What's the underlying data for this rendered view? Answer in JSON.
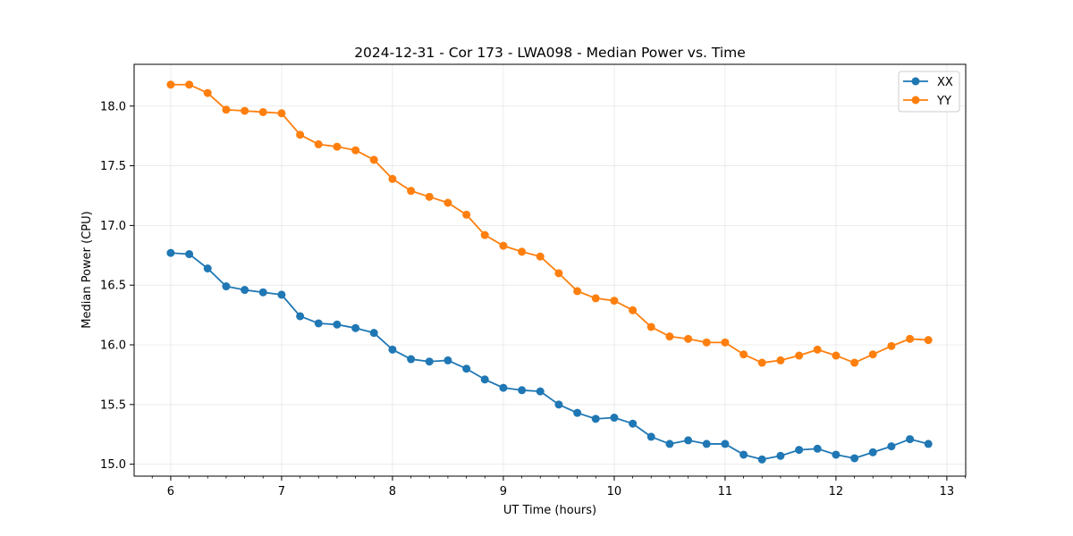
{
  "chart_data": {
    "type": "line",
    "title": "2024-12-31 - Cor 173 - LWA098 - Median Power vs. Time",
    "xlabel": "UT Time (hours)",
    "ylabel": "Median Power (CPU)",
    "xlim": [
      5.67,
      13.17
    ],
    "ylim": [
      14.9,
      18.35
    ],
    "xticks": [
      6,
      7,
      8,
      9,
      10,
      11,
      12,
      13
    ],
    "xtick_labels": [
      "6",
      "7",
      "8",
      "9",
      "10",
      "11",
      "12",
      "13"
    ],
    "yticks": [
      15.0,
      15.5,
      16.0,
      16.5,
      17.0,
      17.5,
      18.0
    ],
    "ytick_labels": [
      "15.0",
      "15.5",
      "16.0",
      "16.5",
      "17.0",
      "17.5",
      "18.0"
    ],
    "grid": true,
    "legend_position": "top-right",
    "x": [
      6.0,
      6.167,
      6.333,
      6.5,
      6.667,
      6.833,
      7.0,
      7.167,
      7.333,
      7.5,
      7.667,
      7.833,
      8.0,
      8.167,
      8.333,
      8.5,
      8.667,
      8.833,
      9.0,
      9.167,
      9.333,
      9.5,
      9.667,
      9.833,
      10.0,
      10.167,
      10.333,
      10.5,
      10.667,
      10.833,
      11.0,
      11.167,
      11.333,
      11.5,
      11.667,
      11.833,
      12.0,
      12.167,
      12.333,
      12.5,
      12.667,
      12.833
    ],
    "series": [
      {
        "name": "XX",
        "color": "#1f77b4",
        "values": [
          16.77,
          16.76,
          16.64,
          16.49,
          16.46,
          16.44,
          16.42,
          16.24,
          16.18,
          16.17,
          16.14,
          16.1,
          15.96,
          15.88,
          15.86,
          15.87,
          15.8,
          15.71,
          15.64,
          15.62,
          15.61,
          15.5,
          15.43,
          15.38,
          15.39,
          15.34,
          15.23,
          15.17,
          15.2,
          15.17,
          15.17,
          15.08,
          15.04,
          15.07,
          15.12,
          15.13,
          15.08,
          15.05,
          15.1,
          15.15,
          15.21,
          15.17
        ]
      },
      {
        "name": "YY",
        "color": "#ff7f0e",
        "values": [
          18.18,
          18.18,
          18.11,
          17.97,
          17.96,
          17.95,
          17.94,
          17.76,
          17.68,
          17.66,
          17.63,
          17.55,
          17.39,
          17.29,
          17.24,
          17.19,
          17.09,
          16.92,
          16.83,
          16.78,
          16.74,
          16.6,
          16.45,
          16.39,
          16.37,
          16.29,
          16.15,
          16.07,
          16.05,
          16.02,
          16.02,
          15.92,
          15.85,
          15.87,
          15.91,
          15.96,
          15.91,
          15.85,
          15.92,
          15.99,
          16.05,
          16.04
        ]
      }
    ]
  }
}
